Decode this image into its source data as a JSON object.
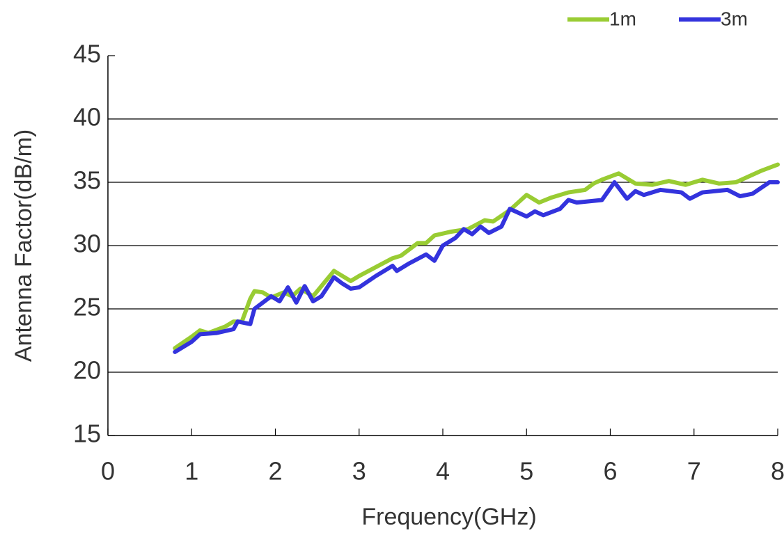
{
  "chart_data": {
    "type": "line",
    "xlabel": "Frequency(GHz)",
    "ylabel": "Antenna Factor(dB/m)",
    "xlim": [
      0,
      8
    ],
    "ylim": [
      15,
      45
    ],
    "xticks": [
      0,
      1,
      2,
      3,
      4,
      5,
      6,
      7,
      8
    ],
    "yticks": [
      15,
      20,
      25,
      30,
      35,
      40,
      45
    ],
    "grid": true,
    "legend": "top-right",
    "series": [
      {
        "name": "1m",
        "color": "#99cc33",
        "x": [
          0.8,
          1.0,
          1.1,
          1.2,
          1.4,
          1.5,
          1.6,
          1.7,
          1.75,
          1.85,
          1.95,
          2.1,
          2.2,
          2.3,
          2.45,
          2.6,
          2.7,
          2.8,
          2.9,
          3.0,
          3.2,
          3.4,
          3.5,
          3.7,
          3.8,
          3.9,
          4.1,
          4.3,
          4.5,
          4.6,
          4.8,
          5.0,
          5.15,
          5.3,
          5.5,
          5.7,
          5.8,
          5.9,
          6.1,
          6.3,
          6.5,
          6.7,
          6.9,
          7.1,
          7.3,
          7.5,
          7.8,
          8.0
        ],
        "values": [
          21.9,
          22.8,
          23.3,
          23.1,
          23.6,
          24.0,
          24.0,
          25.8,
          26.4,
          26.3,
          25.9,
          26.3,
          26.0,
          26.6,
          26.0,
          27.2,
          28.0,
          27.6,
          27.2,
          27.6,
          28.3,
          29.0,
          29.2,
          30.2,
          30.2,
          30.8,
          31.1,
          31.3,
          32.0,
          31.9,
          32.8,
          34.0,
          33.4,
          33.8,
          34.2,
          34.4,
          34.9,
          35.2,
          35.7,
          34.9,
          34.8,
          35.1,
          34.8,
          35.2,
          34.9,
          35.0,
          35.9,
          36.4
        ]
      },
      {
        "name": "3m",
        "color": "#3333dd",
        "x": [
          0.8,
          1.0,
          1.1,
          1.3,
          1.5,
          1.55,
          1.7,
          1.75,
          1.95,
          2.05,
          2.15,
          2.25,
          2.35,
          2.45,
          2.55,
          2.7,
          2.8,
          2.9,
          3.0,
          3.2,
          3.4,
          3.45,
          3.6,
          3.8,
          3.9,
          4.0,
          4.15,
          4.25,
          4.35,
          4.45,
          4.55,
          4.7,
          4.8,
          5.0,
          5.1,
          5.2,
          5.4,
          5.5,
          5.6,
          5.9,
          6.05,
          6.2,
          6.3,
          6.4,
          6.6,
          6.85,
          6.95,
          7.1,
          7.4,
          7.55,
          7.7,
          7.9,
          8.0
        ],
        "values": [
          21.6,
          22.4,
          23.0,
          23.1,
          23.4,
          24.0,
          23.8,
          25.0,
          26.0,
          25.6,
          26.7,
          25.5,
          26.8,
          25.6,
          26.0,
          27.5,
          27.0,
          26.6,
          26.7,
          27.6,
          28.4,
          28.0,
          28.6,
          29.3,
          28.8,
          30.0,
          30.6,
          31.3,
          30.9,
          31.5,
          31.0,
          31.5,
          32.9,
          32.3,
          32.7,
          32.4,
          32.9,
          33.6,
          33.4,
          33.6,
          35.0,
          33.7,
          34.3,
          34.0,
          34.4,
          34.2,
          33.7,
          34.2,
          34.4,
          33.9,
          34.1,
          35.0,
          35.0
        ]
      }
    ]
  }
}
